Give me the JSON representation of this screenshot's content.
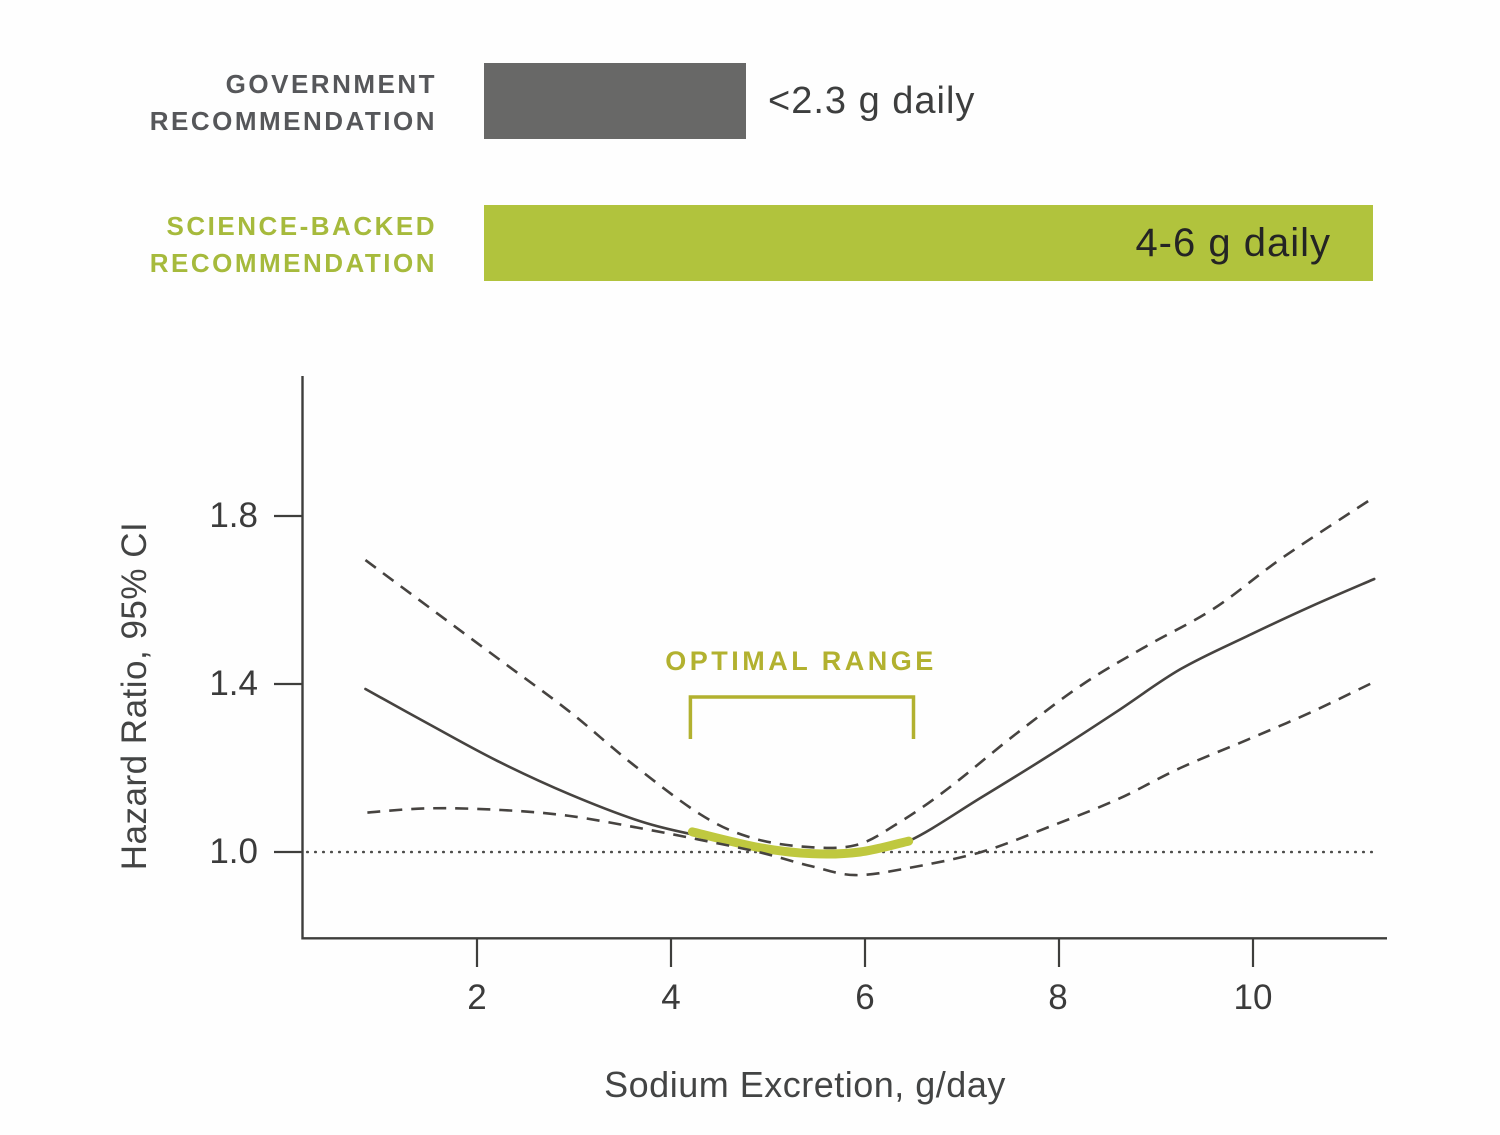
{
  "header": {
    "government": {
      "line1": "GOVERNMENT",
      "line2": "RECOMMENDATION",
      "value": "<2.3 g daily"
    },
    "science": {
      "line1": "SCIENCE-BACKED",
      "line2": "RECOMMENDATION",
      "value": "4-6 g daily"
    }
  },
  "colors": {
    "gray_bar": "#686867",
    "gray_label_text": "#56575a",
    "green_bar": "#b1c33d",
    "green_label_text": "#a6ba3c",
    "olive_annotation": "#b2b12f",
    "green_curve_segment": "#bfc83f",
    "curve_dark": "#464340",
    "axis_dark": "#3e3e3c"
  },
  "chart_data": {
    "type": "line",
    "title": "",
    "xlabel": "Sodium Excretion, g/day",
    "ylabel": "Hazard Ratio, 95% CI",
    "x_ticks": [
      "2",
      "4",
      "6",
      "8",
      "10"
    ],
    "x_tick_values": [
      2,
      4,
      6,
      8,
      10
    ],
    "y_ticks": [
      "1.0",
      "1.4",
      "1.8"
    ],
    "y_tick_values": [
      1.0,
      1.4,
      1.8
    ],
    "xlim": [
      0.2,
      11.45
    ],
    "ylim": [
      0.79,
      2.14
    ],
    "grid": false,
    "legend": null,
    "reference_line": {
      "y": 1.0,
      "style": "dotted",
      "x_start": 0.25,
      "x_end": 11.25
    },
    "annotation": {
      "label": "OPTIMAL RANGE",
      "x_start": 4.2,
      "x_end": 6.5
    },
    "series": [
      {
        "name": "hazard-ratio",
        "style": "solid",
        "color": "#464340",
        "width": 2.6,
        "points": [
          [
            0.85,
            1.388
          ],
          [
            1.5,
            1.305
          ],
          [
            2.2,
            1.218
          ],
          [
            2.95,
            1.138
          ],
          [
            3.7,
            1.072
          ],
          [
            4.3,
            1.038
          ],
          [
            4.9,
            1.011
          ],
          [
            5.45,
            0.996
          ],
          [
            5.95,
            1.0
          ],
          [
            6.45,
            1.026
          ],
          [
            7.2,
            1.13
          ],
          [
            7.9,
            1.23
          ],
          [
            8.6,
            1.335
          ],
          [
            9.25,
            1.435
          ],
          [
            9.95,
            1.515
          ],
          [
            10.6,
            1.585
          ],
          [
            11.25,
            1.65
          ]
        ]
      },
      {
        "name": "ci-upper-95",
        "style": "dashed",
        "color": "#464340",
        "width": 2.6,
        "points": [
          [
            0.85,
            1.695
          ],
          [
            1.55,
            1.575
          ],
          [
            2.25,
            1.455
          ],
          [
            2.95,
            1.335
          ],
          [
            3.6,
            1.21
          ],
          [
            4.3,
            1.09
          ],
          [
            4.8,
            1.036
          ],
          [
            5.35,
            1.013
          ],
          [
            5.9,
            1.016
          ],
          [
            6.35,
            1.07
          ],
          [
            6.85,
            1.15
          ],
          [
            7.55,
            1.28
          ],
          [
            8.25,
            1.4
          ],
          [
            8.9,
            1.49
          ],
          [
            9.6,
            1.58
          ],
          [
            10.3,
            1.7
          ],
          [
            11.25,
            1.845
          ]
        ]
      },
      {
        "name": "ci-lower-95",
        "style": "dashed",
        "color": "#464340",
        "width": 2.6,
        "points": [
          [
            0.87,
            1.094
          ],
          [
            1.5,
            1.104
          ],
          [
            2.25,
            1.1
          ],
          [
            2.95,
            1.086
          ],
          [
            3.7,
            1.056
          ],
          [
            4.3,
            1.029
          ],
          [
            4.9,
            1.0
          ],
          [
            5.45,
            0.966
          ],
          [
            5.9,
            0.945
          ],
          [
            6.45,
            0.962
          ],
          [
            7.2,
            1.0
          ],
          [
            7.9,
            1.06
          ],
          [
            8.6,
            1.125
          ],
          [
            9.25,
            1.2
          ],
          [
            9.95,
            1.268
          ],
          [
            10.6,
            1.333
          ],
          [
            11.25,
            1.405
          ]
        ]
      },
      {
        "name": "optimal-range-segment",
        "style": "solid",
        "color": "#bfc83f",
        "width": 9,
        "points": [
          [
            4.22,
            1.048
          ],
          [
            4.9,
            1.011
          ],
          [
            5.45,
            0.996
          ],
          [
            5.95,
            1.0
          ],
          [
            6.45,
            1.026
          ]
        ]
      }
    ]
  }
}
